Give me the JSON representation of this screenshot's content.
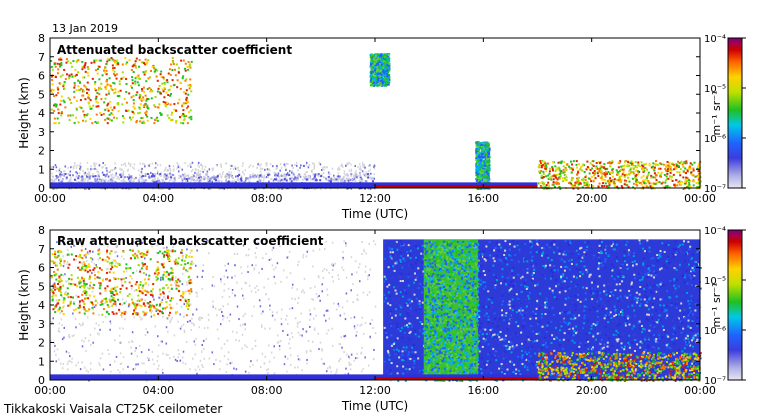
{
  "date": "13 Jan 2019",
  "footer": "Tikkakoski Vaisala CT25K ceilometer",
  "chart_data": [
    {
      "type": "heatmap",
      "title": "Attenuated backscatter coefficient",
      "xlabel": "Time (UTC)",
      "ylabel": "Height (km)",
      "xlim": [
        0,
        24
      ],
      "ylim": [
        0,
        8
      ],
      "x_ticks": [
        "00:00",
        "04:00",
        "08:00",
        "12:00",
        "16:00",
        "20:00",
        "00:00"
      ],
      "y_ticks": [
        "0",
        "1",
        "2",
        "3",
        "4",
        "5",
        "6",
        "7",
        "8"
      ],
      "colorbar": {
        "label": "m⁻¹ sr⁻¹",
        "scale": "log",
        "ticks": [
          "10⁻⁷",
          "10⁻⁶",
          "10⁻⁵",
          "10⁻⁴"
        ]
      },
      "features": [
        {
          "name": "high cloud 00-05 UTC",
          "t_start": 0,
          "t_end": 5.2,
          "z_bottom": 3.5,
          "z_top": 7.0,
          "level": "high"
        },
        {
          "name": "boundary layer aerosol",
          "t_start": 0,
          "t_end": 12,
          "z_bottom": 0,
          "z_top": 0.8,
          "level": "low"
        },
        {
          "name": "cloud near 12 UTC",
          "t_start": 11.8,
          "t_end": 12.5,
          "z_bottom": 5.5,
          "z_top": 7.2,
          "level": "medium"
        },
        {
          "name": "low cloud 16 UTC",
          "t_start": 15.7,
          "t_end": 16.2,
          "z_bottom": 0,
          "z_top": 2.5,
          "level": "medium"
        },
        {
          "name": "fog layer 18-24 UTC",
          "t_start": 18,
          "t_end": 24,
          "z_bottom": 0,
          "z_top": 1.5,
          "level": "high"
        }
      ]
    },
    {
      "type": "heatmap",
      "title": "Raw attenuated backscatter coefficient",
      "xlabel": "Time (UTC)",
      "ylabel": "Height (km)",
      "xlim": [
        0,
        24
      ],
      "ylim": [
        0,
        8
      ],
      "x_ticks": [
        "00:00",
        "04:00",
        "08:00",
        "12:00",
        "16:00",
        "20:00",
        "00:00"
      ],
      "y_ticks": [
        "0",
        "1",
        "2",
        "3",
        "4",
        "5",
        "6",
        "7",
        "8"
      ],
      "colorbar": {
        "label": "m⁻¹ sr⁻¹",
        "scale": "log",
        "ticks": [
          "10⁻⁷",
          "10⁻⁶",
          "10⁻⁵",
          "10⁻⁴"
        ]
      },
      "features": [
        {
          "name": "high cloud 00-05 UTC",
          "t_start": 0,
          "t_end": 5.2,
          "z_bottom": 3.5,
          "z_top": 7.0,
          "level": "high"
        },
        {
          "name": "noise 12-24 UTC",
          "t_start": 12.3,
          "t_end": 24,
          "z_bottom": 0,
          "z_top": 7.5,
          "level": "noise"
        },
        {
          "name": "noisy band 14-16 UTC",
          "t_start": 13.8,
          "t_end": 15.8,
          "z_bottom": 0,
          "z_top": 7.5,
          "level": "medium"
        },
        {
          "name": "fog layer 18-24 UTC",
          "t_start": 18,
          "t_end": 24,
          "z_bottom": 0,
          "z_top": 1.5,
          "level": "high"
        }
      ]
    }
  ]
}
